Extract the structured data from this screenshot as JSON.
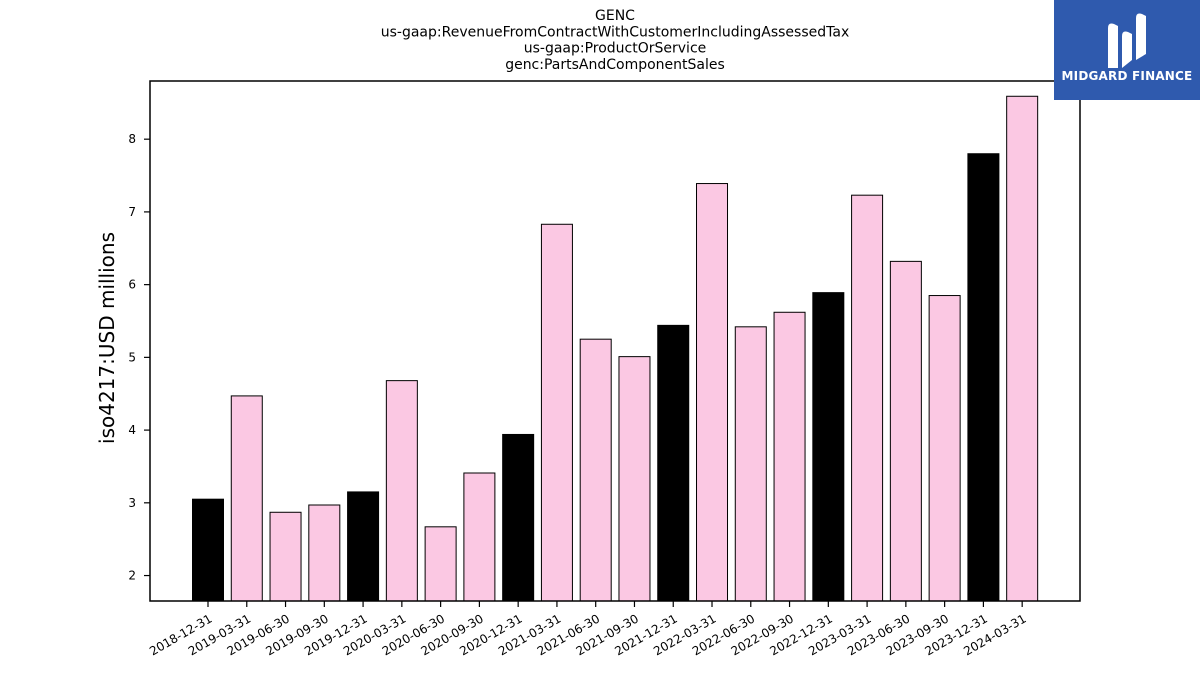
{
  "logo": {
    "text": "MIDGARD FINANCE",
    "background": "#2f5aae"
  },
  "chart_data": {
    "type": "bar",
    "title_lines": [
      "GENC",
      "us-gaap:RevenueFromContractWithCustomerIncludingAssessedTax",
      "us-gaap:ProductOrService",
      "genc:PartsAndComponentSales"
    ],
    "xlabel": "",
    "ylabel": "iso4217:USD  millions",
    "ylim": [
      1.65,
      8.8
    ],
    "yticks": [
      2,
      3,
      4,
      5,
      6,
      7,
      8
    ],
    "grid": false,
    "categories": [
      "2018-12-31",
      "2019-03-31",
      "2019-06-30",
      "2019-09-30",
      "2019-12-31",
      "2020-03-31",
      "2020-06-30",
      "2020-09-30",
      "2020-12-31",
      "2021-03-31",
      "2021-06-30",
      "2021-09-30",
      "2021-12-31",
      "2022-03-31",
      "2022-06-30",
      "2022-09-30",
      "2022-12-31",
      "2023-03-31",
      "2023-06-30",
      "2023-09-30",
      "2023-12-31",
      "2024-03-31"
    ],
    "values": [
      3.05,
      4.47,
      2.87,
      2.97,
      3.15,
      4.68,
      2.67,
      3.41,
      3.94,
      6.83,
      5.25,
      5.01,
      5.44,
      7.39,
      5.42,
      5.62,
      5.89,
      7.23,
      6.32,
      5.85,
      7.8,
      8.59
    ],
    "bar_colors": [
      "#000000",
      "#fbc8e3",
      "#fbc8e3",
      "#fbc8e3",
      "#000000",
      "#fbc8e3",
      "#fbc8e3",
      "#fbc8e3",
      "#000000",
      "#fbc8e3",
      "#fbc8e3",
      "#fbc8e3",
      "#000000",
      "#fbc8e3",
      "#fbc8e3",
      "#fbc8e3",
      "#000000",
      "#fbc8e3",
      "#fbc8e3",
      "#fbc8e3",
      "#000000",
      "#fbc8e3"
    ],
    "edge_color": "#000000"
  }
}
